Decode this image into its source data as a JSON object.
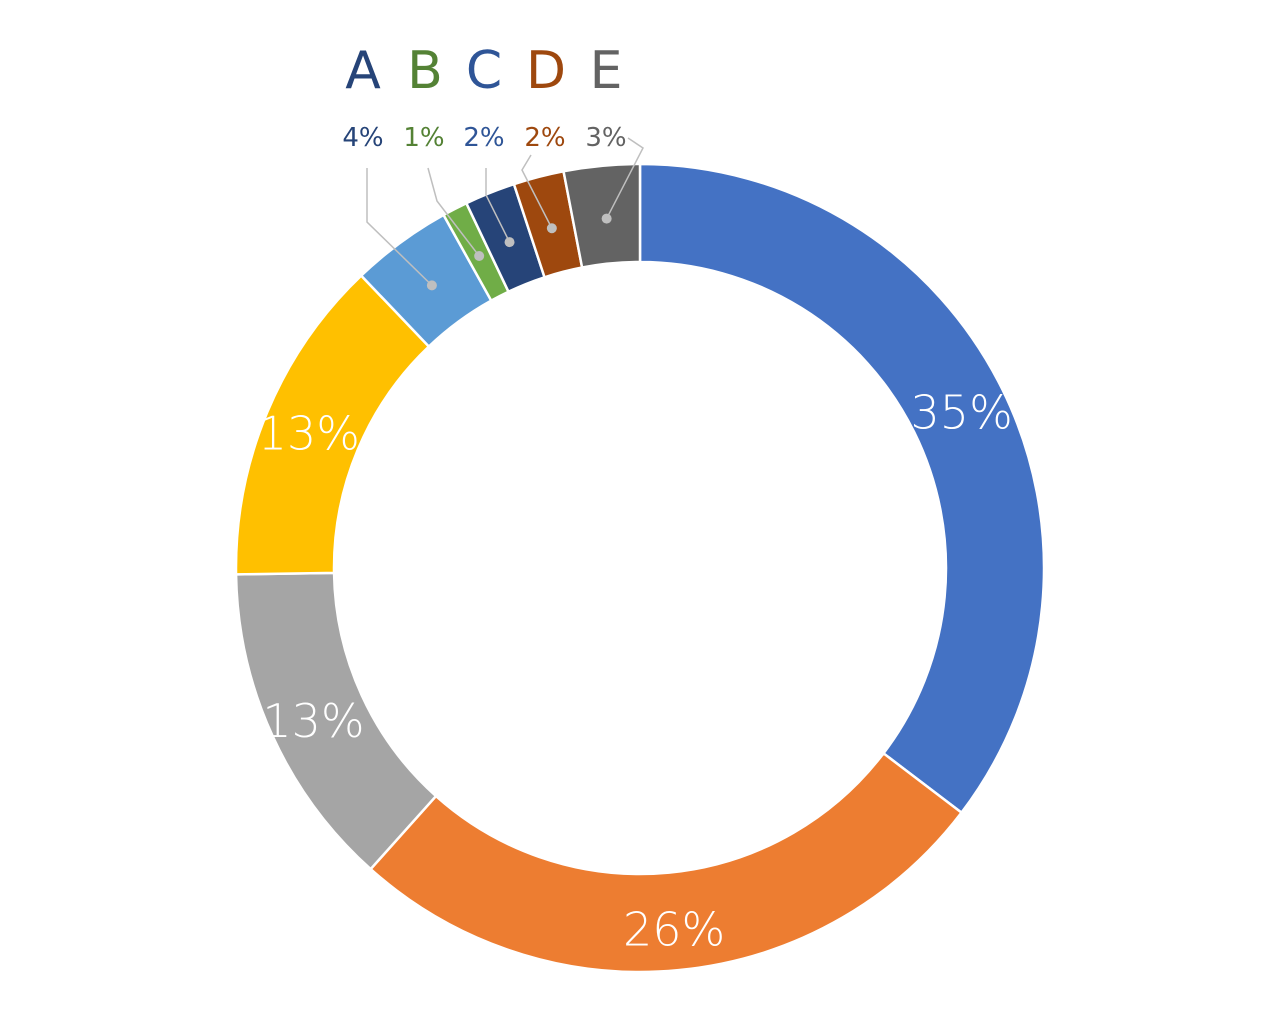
{
  "chart_data": {
    "type": "pie",
    "donut": true,
    "start_angle_deg": 0,
    "direction": "clockwise",
    "slices": [
      {
        "value": 35,
        "label": "35%",
        "color": "#4472C4",
        "label_placement": "inside",
        "label_color": "#FFFFFF"
      },
      {
        "value": 26,
        "label": "26%",
        "color": "#ED7D31",
        "label_placement": "inside",
        "label_color": "#FFFFFF"
      },
      {
        "value": 13,
        "label": "13%",
        "color": "#A5A5A5",
        "label_placement": "inside",
        "label_color": "#FFFFFF"
      },
      {
        "value": 13,
        "label": "13%",
        "color": "#FFC000",
        "label_placement": "inside",
        "label_color": "#FFFFFF"
      },
      {
        "value": 4,
        "label": "4%",
        "color": "#5B9BD5",
        "label_placement": "callout",
        "label_color": "#264478",
        "category": "A",
        "category_color": "#264478"
      },
      {
        "value": 1,
        "label": "1%",
        "color": "#70AD47",
        "label_placement": "callout",
        "label_color": "#548235",
        "category": "B",
        "category_color": "#548235"
      },
      {
        "value": 2,
        "label": "2%",
        "color": "#264478",
        "label_placement": "callout",
        "label_color": "#2F5597",
        "category": "C",
        "category_color": "#2F5597"
      },
      {
        "value": 2,
        "label": "2%",
        "color": "#9E480E",
        "label_placement": "callout",
        "label_color": "#9E480E",
        "category": "D",
        "category_color": "#9E480E"
      },
      {
        "value": 3,
        "label": "3%",
        "color": "#636363",
        "label_placement": "callout",
        "label_color": "#636363",
        "category": "E",
        "category_color": "#636363"
      }
    ],
    "leader_line_color": "#BFBFBF",
    "leader_dot_color": "#BFBFBF",
    "separator_color": "#FFFFFF"
  }
}
